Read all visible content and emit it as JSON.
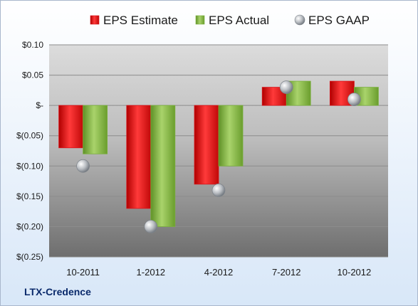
{
  "company": "LTX-Credence",
  "colors": {
    "estimate": "#d8141b",
    "actual": "#7ab03c",
    "gaap": "#b3b7bc"
  },
  "chart_data": {
    "type": "bar",
    "categories": [
      "10-2011",
      "1-2012",
      "4-2012",
      "7-2012",
      "10-2012"
    ],
    "series": [
      {
        "name": "EPS Estimate",
        "kind": "bar",
        "values": [
          -0.07,
          -0.17,
          -0.13,
          0.03,
          0.04
        ]
      },
      {
        "name": "EPS Actual",
        "kind": "bar",
        "values": [
          -0.08,
          -0.2,
          -0.1,
          0.04,
          0.03
        ]
      },
      {
        "name": "EPS GAAP",
        "kind": "scatter",
        "values": [
          -0.1,
          -0.2,
          -0.14,
          0.03,
          0.01
        ]
      }
    ],
    "y_ticks": [
      0.1,
      0.05,
      0,
      -0.05,
      -0.1,
      -0.15,
      -0.2,
      -0.25
    ],
    "y_tick_labels": [
      "$0.10",
      "$0.05",
      "$-",
      "$(0.05)",
      "$(0.10)",
      "$(0.15)",
      "$(0.20)",
      "$(0.25)"
    ],
    "ylim": [
      -0.25,
      0.1
    ],
    "grid": true,
    "legend_position": "top"
  }
}
